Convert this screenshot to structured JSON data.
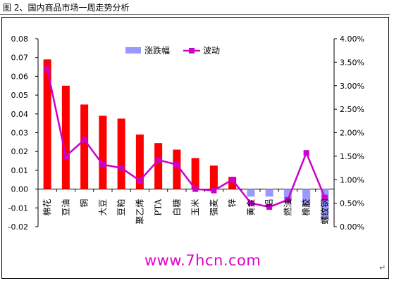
{
  "caption": "图 2、国内商品市场一周走势分析",
  "watermark": "www.7hcn.com",
  "chart_data": {
    "type": "bar+line",
    "categories": [
      "棉花",
      "豆油",
      "铜",
      "大豆",
      "豆粕",
      "聚乙烯",
      "PTA",
      "白糖",
      "玉米",
      "强麦",
      "锌",
      "黄金",
      "铝",
      "燃油",
      "橡胶",
      "螺纹钢"
    ],
    "series": [
      {
        "name": "涨跌幅",
        "type": "bar",
        "axis": "left",
        "color": "#ff0000",
        "neg_color": "#9999ff",
        "values": [
          0.069,
          0.055,
          0.045,
          0.039,
          0.0375,
          0.029,
          0.0245,
          0.021,
          0.0165,
          0.0125,
          0.0065,
          -0.004,
          -0.004,
          -0.006,
          -0.009,
          -0.016
        ]
      },
      {
        "name": "波动",
        "type": "line",
        "axis": "right",
        "color": "#cc00cc",
        "values": [
          3.35,
          1.5,
          1.85,
          1.32,
          1.25,
          0.98,
          1.42,
          1.32,
          0.8,
          0.77,
          1.0,
          0.5,
          0.42,
          0.57,
          1.57,
          0.62
        ]
      }
    ],
    "y_left": {
      "min": -0.02,
      "max": 0.08,
      "ticks": [
        "-0.02",
        "-0.01",
        "0.00",
        "0.01",
        "0.02",
        "0.03",
        "0.04",
        "0.05",
        "0.06",
        "0.07",
        "0.08"
      ]
    },
    "y_right": {
      "min": 0,
      "max": 4,
      "ticks": [
        "0.00%",
        "0.50%",
        "1.00%",
        "1.50%",
        "2.00%",
        "2.50%",
        "3.00%",
        "3.50%",
        "4.00%"
      ]
    },
    "legend": {
      "position": "top-center"
    }
  }
}
